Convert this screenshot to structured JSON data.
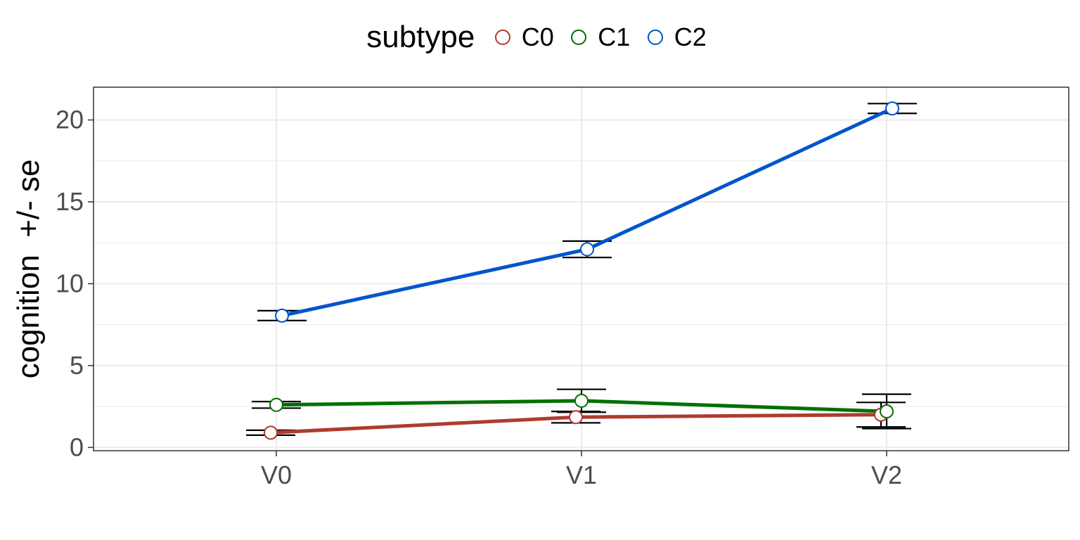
{
  "chart_data": {
    "type": "line",
    "categories": [
      "V0",
      "V1",
      "V2"
    ],
    "series": [
      {
        "name": "C0",
        "color": "#B03A2E",
        "values": [
          0.9,
          1.85,
          2.0
        ],
        "se": [
          0.15,
          0.35,
          0.75
        ]
      },
      {
        "name": "C1",
        "color": "#007000",
        "values": [
          2.6,
          2.85,
          2.2
        ],
        "se": [
          0.2,
          0.7,
          1.05
        ]
      },
      {
        "name": "C2",
        "color": "#0055CC",
        "values": [
          8.05,
          12.1,
          20.7
        ],
        "se": [
          0.3,
          0.5,
          0.3
        ]
      }
    ],
    "ylabel": "cognition  +/- se",
    "xlabel": "",
    "yticks": [
      0,
      5,
      10,
      15,
      20
    ],
    "ylim": [
      -0.2,
      22
    ],
    "legend": {
      "title": "subtype",
      "position": "top"
    },
    "grid": true
  }
}
